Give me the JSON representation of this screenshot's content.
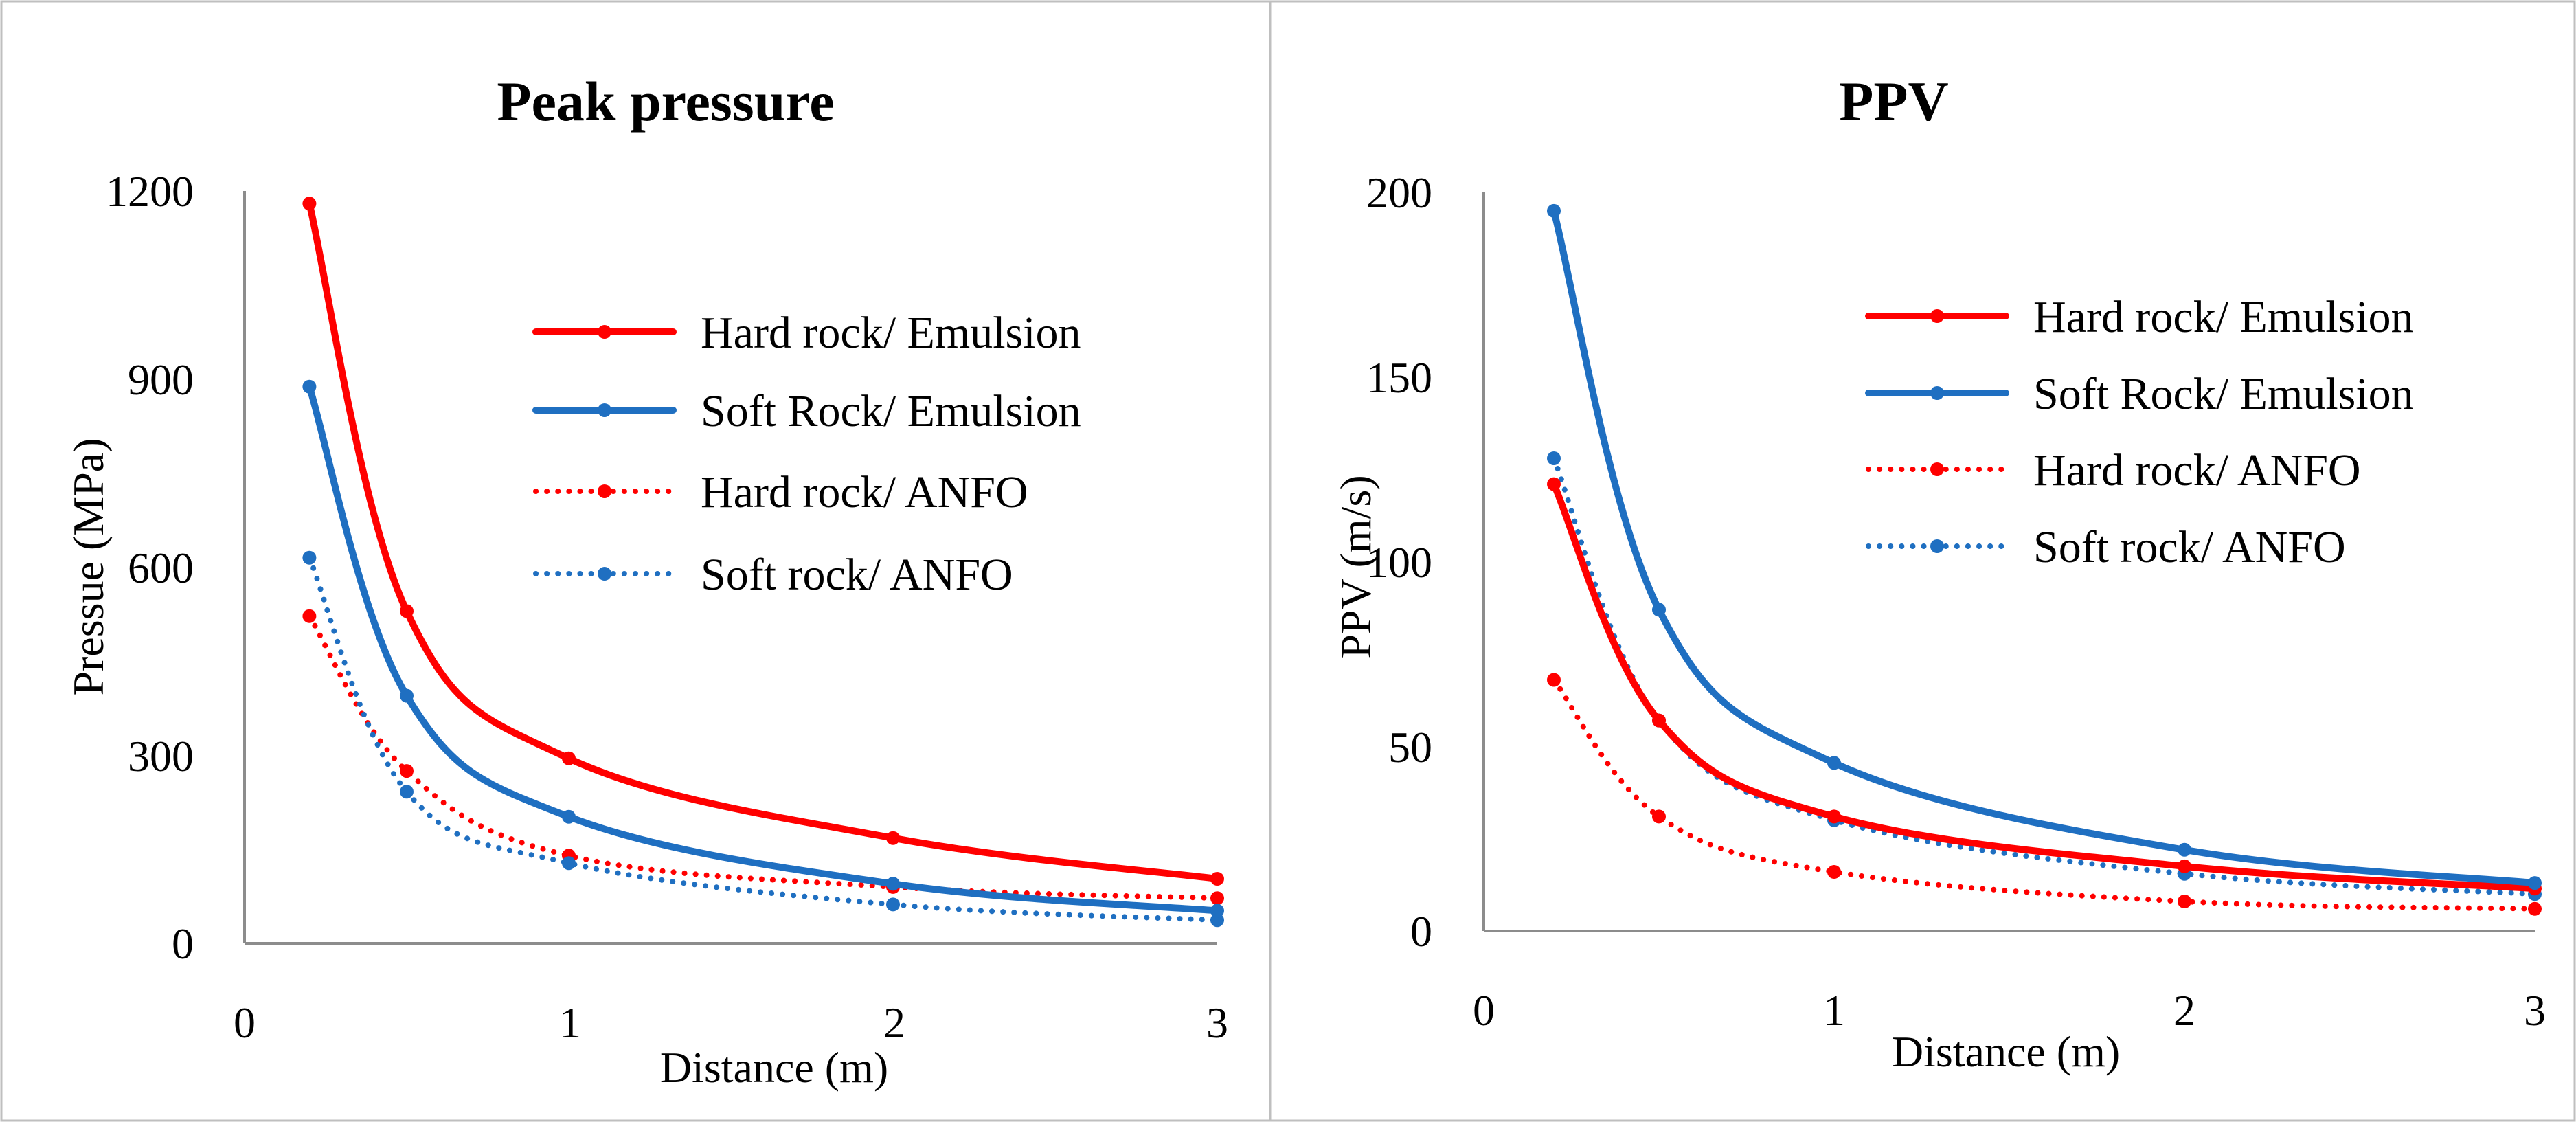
{
  "colors": {
    "red": "#ff0000",
    "blue": "#1f6fc1",
    "axis": "#8c8c8c",
    "frame": "#bfbfbf"
  },
  "chart_data": [
    {
      "type": "line",
      "title": "Peak pressure",
      "xlabel": "Distance (m)",
      "ylabel": "Pressue (MPa)",
      "xlim": [
        0,
        3
      ],
      "ylim": [
        0,
        1200
      ],
      "xticks": [
        "0",
        "1",
        "2",
        "3"
      ],
      "yticks": [
        "0",
        "300",
        "600",
        "900",
        "1200"
      ],
      "x": [
        0.2,
        0.5,
        1,
        2,
        3
      ],
      "legend_position": "upper-right",
      "series": [
        {
          "name": "Hard rock/ Emulsion",
          "style": "solid",
          "color": "#ff0000",
          "values": [
            1180,
            530,
            295,
            168,
            103
          ]
        },
        {
          "name": "Soft Rock/ Emulsion",
          "style": "solid",
          "color": "#1f6fc1",
          "values": [
            888,
            395,
            202,
            95,
            52
          ]
        },
        {
          "name": "Hard rock/ ANFO",
          "style": "dotted",
          "color": "#ff0000",
          "values": [
            522,
            275,
            140,
            90,
            72
          ]
        },
        {
          "name": "Soft rock/ ANFO",
          "style": "dotted",
          "color": "#1f6fc1",
          "values": [
            615,
            242,
            128,
            62,
            37
          ]
        }
      ]
    },
    {
      "type": "line",
      "title": "PPV",
      "xlabel": "Distance (m)",
      "ylabel": "PPV (m/s)",
      "xlim": [
        0,
        3
      ],
      "ylim": [
        0,
        200
      ],
      "xticks": [
        "0",
        "1",
        "2",
        "3"
      ],
      "yticks": [
        "0",
        "50",
        "100",
        "150",
        "200"
      ],
      "x": [
        0.2,
        0.5,
        1,
        2,
        3
      ],
      "legend_position": "upper-right",
      "series": [
        {
          "name": "Hard rock/ Emulsion",
          "style": "solid",
          "color": "#ff0000",
          "values": [
            121,
            57,
            31,
            17.5,
            11.5
          ]
        },
        {
          "name": "Soft Rock/ Emulsion",
          "style": "solid",
          "color": "#1f6fc1",
          "values": [
            195,
            87,
            45.5,
            22,
            13
          ]
        },
        {
          "name": "Hard rock/ ANFO",
          "style": "dotted",
          "color": "#ff0000",
          "values": [
            68,
            31,
            16,
            8,
            6
          ]
        },
        {
          "name": "Soft rock/ ANFO",
          "style": "dotted",
          "color": "#1f6fc1",
          "values": [
            128,
            57,
            30,
            15.5,
            10
          ]
        }
      ]
    }
  ]
}
